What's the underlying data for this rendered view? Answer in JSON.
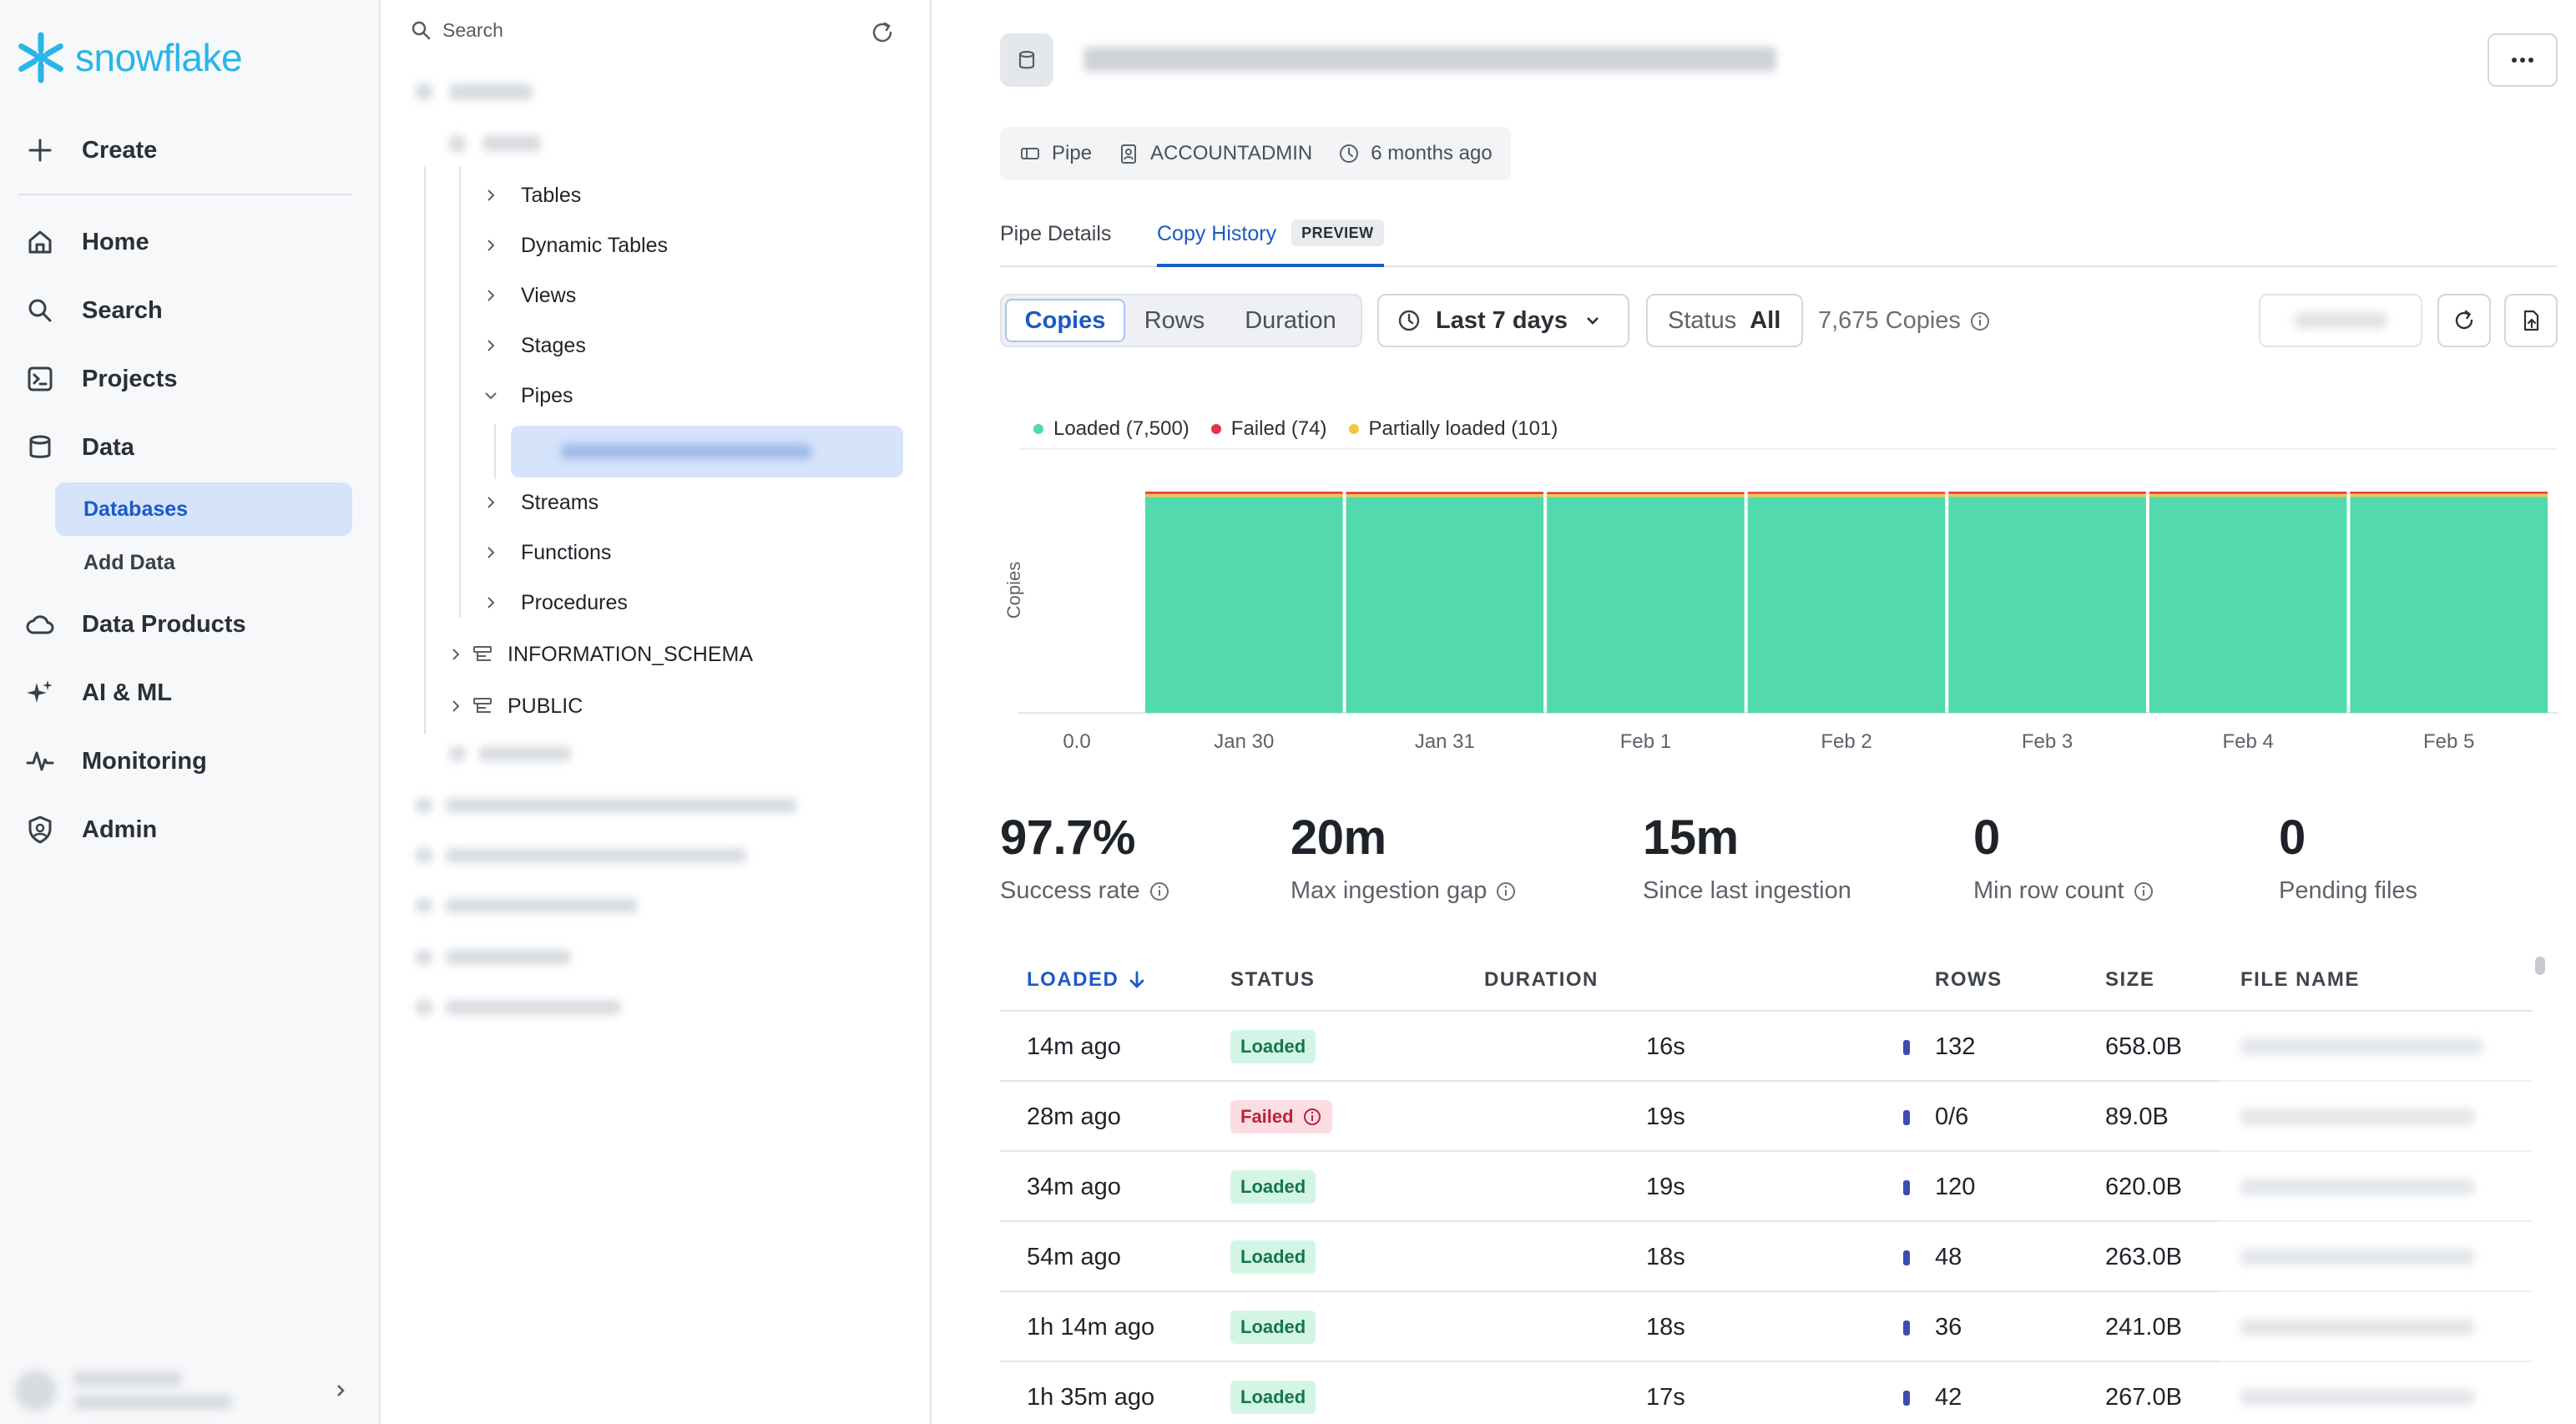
{
  "nav": {
    "logo": "snowflake",
    "create": "Create",
    "items": [
      {
        "label": "Home",
        "icon": "home-icon"
      },
      {
        "label": "Search",
        "icon": "search-icon"
      },
      {
        "label": "Projects",
        "icon": "projects-icon"
      },
      {
        "label": "Data",
        "icon": "data-icon"
      },
      {
        "label": "Data Products",
        "icon": "cloud-icon"
      },
      {
        "label": "AI & ML",
        "icon": "sparkle-icon"
      },
      {
        "label": "Monitoring",
        "icon": "pulse-icon"
      },
      {
        "label": "Admin",
        "icon": "shield-icon"
      }
    ],
    "sub_items": [
      {
        "label": "Databases",
        "active": true
      },
      {
        "label": "Add Data",
        "active": false
      }
    ]
  },
  "tree": {
    "search_placeholder": "Search",
    "items": [
      "Tables",
      "Dynamic Tables",
      "Views",
      "Stages",
      "Pipes",
      "Streams",
      "Functions",
      "Procedures"
    ],
    "schemas": [
      "INFORMATION_SCHEMA",
      "PUBLIC"
    ]
  },
  "header": {
    "meta": [
      {
        "label": "Pipe",
        "icon": "pipe-icon"
      },
      {
        "label": "ACCOUNTADMIN",
        "icon": "role-icon"
      },
      {
        "label": "6 months ago",
        "icon": "clock-icon"
      }
    ],
    "tabs": [
      {
        "label": "Pipe Details",
        "active": false
      },
      {
        "label": "Copy History",
        "active": true,
        "badge": "PREVIEW"
      }
    ]
  },
  "toolbar": {
    "segments": [
      {
        "label": "Copies",
        "active": true
      },
      {
        "label": "Rows",
        "active": false
      },
      {
        "label": "Duration",
        "active": false
      }
    ],
    "range": "Last 7 days",
    "status_label": "Status",
    "status_value": "All",
    "copies_count": "7,675 Copies"
  },
  "chart_data": {
    "type": "bar",
    "stacked": true,
    "categories": [
      "Jan 30",
      "Jan 31",
      "Feb 1",
      "Feb 2",
      "Feb 3",
      "Feb 4",
      "Feb 5"
    ],
    "series": [
      {
        "name": "Loaded (7,500)",
        "color": "#52d9ad",
        "values": [
          1071,
          1071,
          1071,
          1071,
          1072,
          1072,
          1072
        ]
      },
      {
        "name": "Partially loaded (101)",
        "color": "#f5c542",
        "values": [
          15,
          14,
          14,
          15,
          14,
          14,
          15
        ]
      },
      {
        "name": "Failed (74)",
        "color": "#e8334a",
        "values": [
          11,
          11,
          10,
          10,
          11,
          11,
          10
        ]
      }
    ],
    "legend_order": [
      "Loaded (7,500)",
      "Failed (74)",
      "Partially loaded (101)"
    ],
    "ylabel": "Copies",
    "y_ticks": [
      "0.0",
      "1200"
    ],
    "ylim": [
      0,
      1300
    ],
    "grid": true
  },
  "stats": [
    {
      "value": "97.7%",
      "label": "Success rate",
      "info": true
    },
    {
      "value": "20m",
      "label": "Max ingestion gap",
      "info": true
    },
    {
      "value": "15m",
      "label": "Since last ingestion",
      "info": false
    },
    {
      "value": "0",
      "label": "Min row count",
      "info": true
    },
    {
      "value": "0",
      "label": "Pending files",
      "info": false
    }
  ],
  "table": {
    "headers": {
      "loaded": "LOADED",
      "status": "STATUS",
      "duration": "DURATION",
      "rows": "ROWS",
      "size": "SIZE",
      "file": "FILE NAME"
    },
    "rows": [
      {
        "loaded": "14m ago",
        "status": "Loaded",
        "duration": "16s",
        "rows": "132",
        "size": "658.0B"
      },
      {
        "loaded": "28m ago",
        "status": "Failed",
        "duration": "19s",
        "rows": "0/6",
        "size": "89.0B"
      },
      {
        "loaded": "34m ago",
        "status": "Loaded",
        "duration": "19s",
        "rows": "120",
        "size": "620.0B"
      },
      {
        "loaded": "54m ago",
        "status": "Loaded",
        "duration": "18s",
        "rows": "48",
        "size": "263.0B"
      },
      {
        "loaded": "1h 14m ago",
        "status": "Loaded",
        "duration": "18s",
        "rows": "36",
        "size": "241.0B"
      },
      {
        "loaded": "1h 35m ago",
        "status": "Loaded",
        "duration": "17s",
        "rows": "42",
        "size": "267.0B"
      }
    ]
  }
}
